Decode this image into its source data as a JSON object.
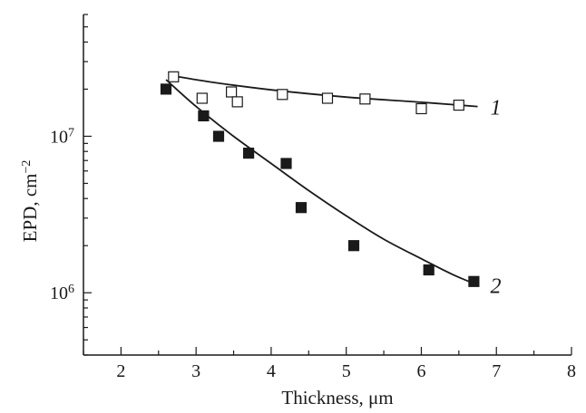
{
  "chart_data": {
    "type": "scatter",
    "title": "",
    "xlabel": "Thickness, μm",
    "ylabel_text": "EPD, cm",
    "ylabel_exponent": "−2",
    "y_scale": "log",
    "xlim": [
      1.5,
      8
    ],
    "ylim": [
      400000,
      60000000
    ],
    "x_ticks": [
      "2",
      "3",
      "4",
      "5",
      "6",
      "7",
      "8"
    ],
    "y_ticks": [
      {
        "value": 10000000,
        "base": "10",
        "exp": "7"
      },
      {
        "value": 1000000,
        "base": "10",
        "exp": "6"
      }
    ],
    "grid": false,
    "series": [
      {
        "name": "1",
        "marker": "open-square",
        "points": [
          {
            "x": 2.7,
            "y": 24000000
          },
          {
            "x": 3.08,
            "y": 17500000
          },
          {
            "x": 3.47,
            "y": 19200000
          },
          {
            "x": 3.55,
            "y": 16600000
          },
          {
            "x": 4.15,
            "y": 18500000
          },
          {
            "x": 4.75,
            "y": 17500000
          },
          {
            "x": 5.25,
            "y": 17300000
          },
          {
            "x": 6.0,
            "y": 15000000
          },
          {
            "x": 6.5,
            "y": 15800000
          }
        ],
        "fit": [
          {
            "x": 2.65,
            "y": 24500000
          },
          {
            "x": 3.2,
            "y": 22200000
          },
          {
            "x": 4.0,
            "y": 19800000
          },
          {
            "x": 5.0,
            "y": 17800000
          },
          {
            "x": 6.0,
            "y": 16500000
          },
          {
            "x": 6.75,
            "y": 15500000
          }
        ]
      },
      {
        "name": "2",
        "marker": "filled-square",
        "points": [
          {
            "x": 2.6,
            "y": 20000000
          },
          {
            "x": 3.1,
            "y": 13500000
          },
          {
            "x": 3.3,
            "y": 10000000
          },
          {
            "x": 3.7,
            "y": 7800000
          },
          {
            "x": 4.2,
            "y": 6700000
          },
          {
            "x": 4.4,
            "y": 3500000
          },
          {
            "x": 5.1,
            "y": 2000000
          },
          {
            "x": 6.1,
            "y": 1400000
          },
          {
            "x": 6.7,
            "y": 1180000
          }
        ],
        "fit": [
          {
            "x": 2.6,
            "y": 23000000
          },
          {
            "x": 3.0,
            "y": 15500000
          },
          {
            "x": 3.5,
            "y": 10000000
          },
          {
            "x": 4.0,
            "y": 6700000
          },
          {
            "x": 4.5,
            "y": 4500000
          },
          {
            "x": 5.0,
            "y": 3100000
          },
          {
            "x": 5.5,
            "y": 2200000
          },
          {
            "x": 6.0,
            "y": 1650000
          },
          {
            "x": 6.4,
            "y": 1320000
          },
          {
            "x": 6.75,
            "y": 1120000
          }
        ]
      }
    ],
    "colors": {
      "axis": "#1a1a1a",
      "marker": "#1a1a1a",
      "background": "#ffffff"
    }
  }
}
